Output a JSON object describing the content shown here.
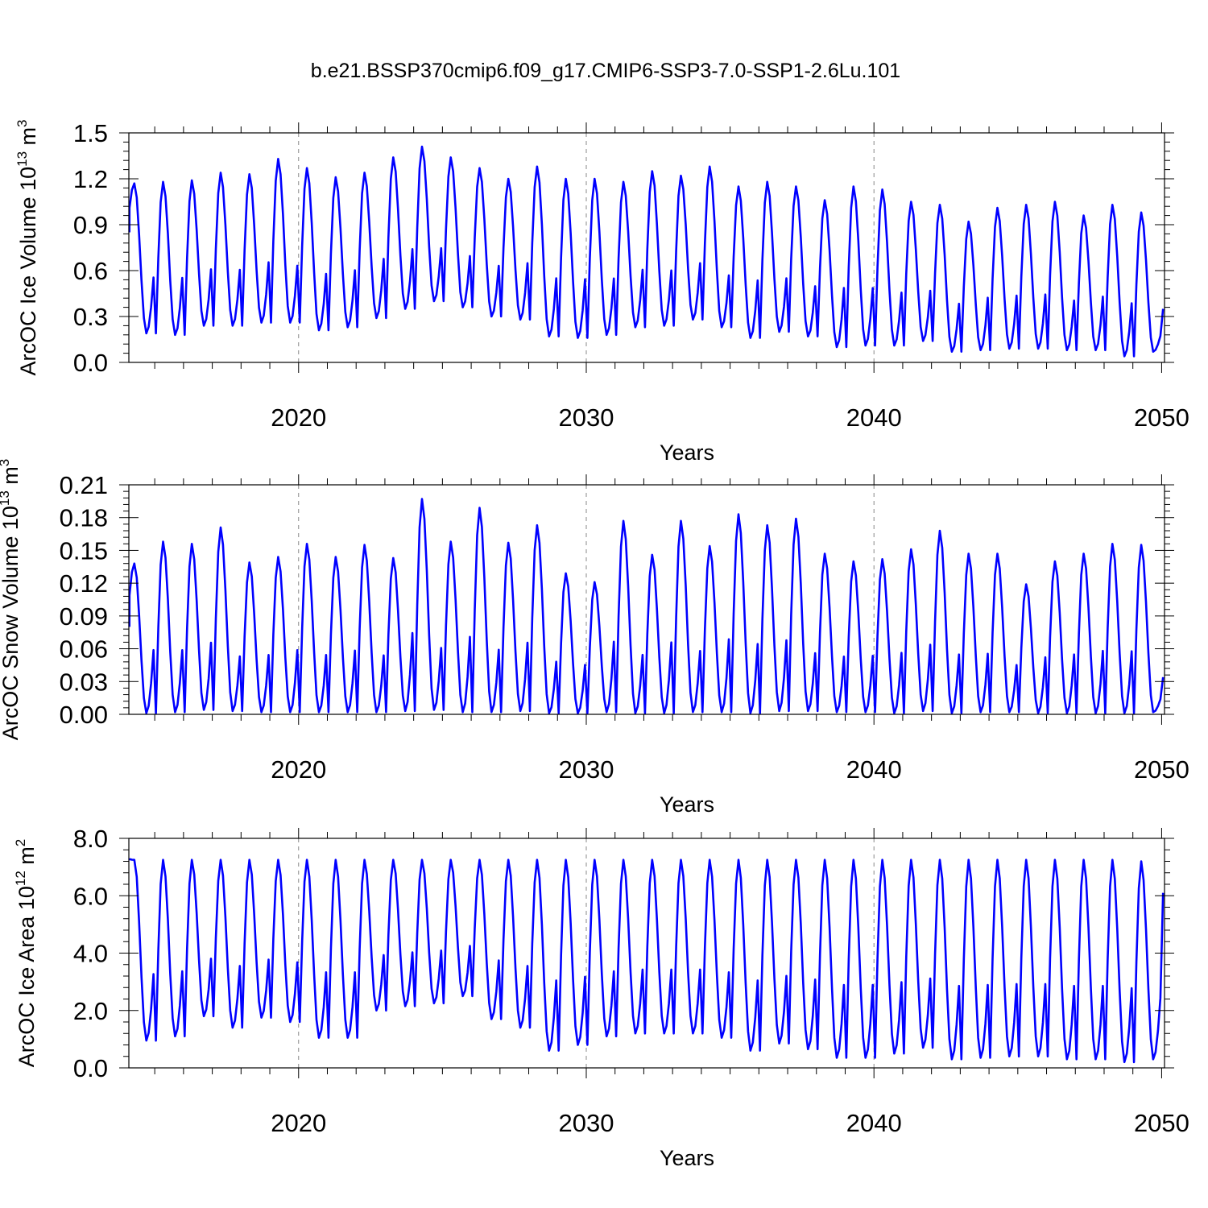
{
  "figure": {
    "title": "b.e21.BSSP370cmip6.f09_g17.CMIP6-SSP3-7.0-SSP1-2.6Lu.101"
  },
  "colors": {
    "line": "#0000ff",
    "axis": "#000000",
    "gridline": "#888888",
    "background": "#ffffff"
  },
  "chart_data": [
    {
      "type": "line",
      "title": "b.e21.BSSP370cmip6.f09_g17.CMIP6-SSP3-7.0-SSP1-2.6Lu.101",
      "xlabel": "Years",
      "ylabel_main": "ArcOC Ice Volume 10",
      "ylabel_exp": "13",
      "ylabel_unit": "m",
      "ylabel_unit_exp": "3",
      "xlim": [
        2014.1,
        2050.1
      ],
      "ylim": [
        0,
        1.5
      ],
      "xticks": [
        2020,
        2030,
        2040,
        2050
      ],
      "xtick_labels": [
        "2020",
        "2030",
        "2040",
        "2050"
      ],
      "yticks": [
        0,
        0.3,
        0.6,
        0.9,
        1.2,
        1.5
      ],
      "ytick_labels": [
        "0.0",
        "0.3",
        "0.6",
        "0.9",
        "1.2",
        "1.5"
      ],
      "dashed_vlines": [
        2020,
        2030,
        2040
      ],
      "series": [
        {
          "name": "ArcOC Ice Volume",
          "start_year": 2014.12,
          "annual_max": [
            1.17,
            1.18,
            1.19,
            1.24,
            1.23,
            1.33,
            1.27,
            1.21,
            1.24,
            1.34,
            1.41,
            1.34,
            1.27,
            1.2,
            1.28,
            1.2,
            1.2,
            1.18,
            1.25,
            1.22,
            1.28,
            1.15,
            1.18,
            1.15,
            1.06,
            1.15,
            1.13,
            1.05,
            1.03,
            0.92,
            1.01,
            1.03,
            1.05,
            0.96,
            1.03,
            0.98
          ],
          "annual_min": [
            0.19,
            0.18,
            0.24,
            0.24,
            0.26,
            0.26,
            0.21,
            0.23,
            0.29,
            0.35,
            0.4,
            0.36,
            0.3,
            0.28,
            0.17,
            0.16,
            0.18,
            0.23,
            0.24,
            0.28,
            0.23,
            0.16,
            0.2,
            0.17,
            0.1,
            0.11,
            0.11,
            0.14,
            0.07,
            0.08,
            0.09,
            0.09,
            0.08,
            0.08,
            0.04,
            0.07
          ],
          "start_value": 0.85,
          "end_value": 0.35
        }
      ]
    },
    {
      "type": "line",
      "xlabel": "Years",
      "ylabel_main": "ArcOC Snow Volume 10",
      "ylabel_exp": "13",
      "ylabel_unit": "m",
      "ylabel_unit_exp": "3",
      "xlim": [
        2014.1,
        2050.1
      ],
      "ylim": [
        0,
        0.21
      ],
      "xticks": [
        2020,
        2030,
        2040,
        2050
      ],
      "xtick_labels": [
        "2020",
        "2030",
        "2040",
        "2050"
      ],
      "yticks": [
        0,
        0.03,
        0.06,
        0.09,
        0.12,
        0.15,
        0.18,
        0.21
      ],
      "ytick_labels": [
        "0.00",
        "0.03",
        "0.06",
        "0.09",
        "0.12",
        "0.15",
        "0.18",
        "0.21"
      ],
      "dashed_vlines": [
        2020,
        2030,
        2040
      ],
      "series": [
        {
          "name": "ArcOC Snow Volume",
          "start_year": 2014.12,
          "annual_max": [
            0.138,
            0.158,
            0.156,
            0.171,
            0.139,
            0.144,
            0.156,
            0.144,
            0.155,
            0.143,
            0.197,
            0.158,
            0.189,
            0.157,
            0.173,
            0.129,
            0.121,
            0.177,
            0.146,
            0.177,
            0.154,
            0.183,
            0.173,
            0.179,
            0.147,
            0.14,
            0.142,
            0.151,
            0.168,
            0.147,
            0.147,
            0.119,
            0.14,
            0.147,
            0.156,
            0.155
          ],
          "annual_min": [
            0.001,
            0.002,
            0.004,
            0.003,
            0.002,
            0.002,
            0.002,
            0.002,
            0.002,
            0.003,
            0.004,
            0.002,
            0.002,
            0.003,
            0.001,
            0.001,
            0.002,
            0.001,
            0.001,
            0.002,
            0.002,
            0.001,
            0.003,
            0.003,
            0.002,
            0.002,
            0.001,
            0.003,
            0.001,
            0.002,
            0.002,
            0.001,
            0.001,
            0.001,
            0.001,
            0.002
          ],
          "start_value": 0.08,
          "end_value": 0.034
        }
      ]
    },
    {
      "type": "line",
      "xlabel": "Years",
      "ylabel_main": "ArcOC Ice Area 10",
      "ylabel_exp": "12",
      "ylabel_unit": "m",
      "ylabel_unit_exp": "2",
      "xlim": [
        2014.1,
        2050.1
      ],
      "ylim": [
        0,
        8.0
      ],
      "xticks": [
        2020,
        2030,
        2040,
        2050
      ],
      "xtick_labels": [
        "2020",
        "2030",
        "2040",
        "2050"
      ],
      "yticks": [
        0,
        2.0,
        4.0,
        6.0,
        8.0
      ],
      "ytick_labels": [
        "0.0",
        "2.0",
        "4.0",
        "6.0",
        "8.0"
      ],
      "dashed_vlines": [
        2020,
        2030,
        2040
      ],
      "series": [
        {
          "name": "ArcOC Ice Area",
          "start_year": 2014.12,
          "annual_max": [
            7.25,
            7.25,
            7.25,
            7.25,
            7.25,
            7.25,
            7.25,
            7.25,
            7.25,
            7.25,
            7.25,
            7.25,
            7.25,
            7.25,
            7.25,
            7.25,
            7.25,
            7.25,
            7.25,
            7.25,
            7.25,
            7.25,
            7.25,
            7.25,
            7.25,
            7.25,
            7.25,
            7.25,
            7.25,
            7.25,
            7.25,
            7.25,
            7.25,
            7.25,
            7.25,
            7.2
          ],
          "annual_min": [
            0.95,
            1.1,
            1.8,
            1.4,
            1.75,
            1.6,
            1.05,
            1.05,
            2.0,
            2.15,
            2.25,
            2.5,
            1.7,
            1.4,
            0.6,
            0.8,
            1.1,
            1.2,
            1.2,
            1.2,
            1.05,
            0.6,
            0.85,
            0.65,
            0.35,
            0.35,
            0.5,
            0.7,
            0.3,
            0.35,
            0.4,
            0.4,
            0.3,
            0.3,
            0.2,
            0.3
          ],
          "start_value": 7.3,
          "end_value": 6.1
        }
      ]
    }
  ]
}
